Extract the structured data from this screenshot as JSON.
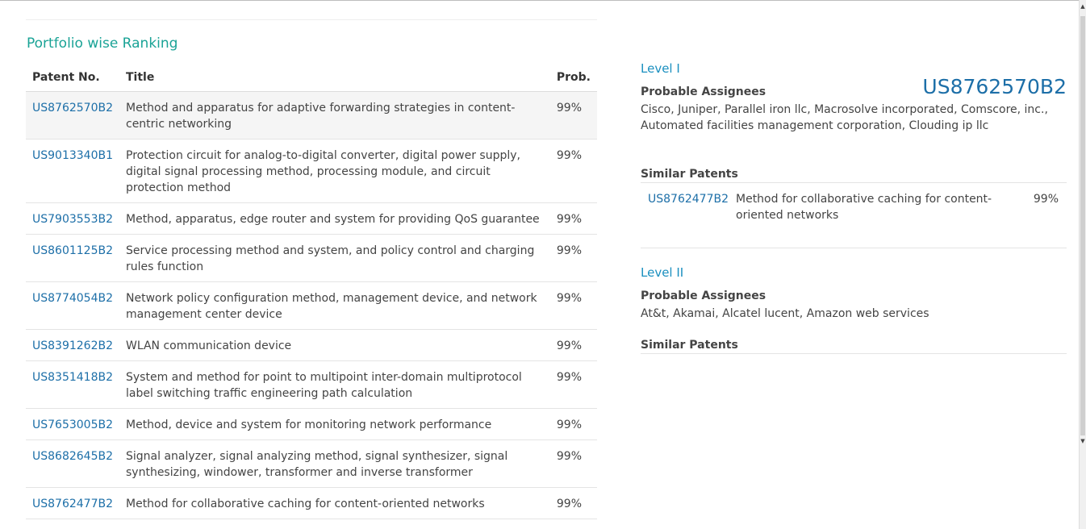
{
  "portfolio": {
    "title": "Portfolio wise Ranking",
    "columns": {
      "patent_no": "Patent No.",
      "title": "Title",
      "prob": "Prob."
    },
    "rows": [
      {
        "id": "US8762570B2",
        "title": "Method and apparatus for adaptive forwarding strategies in content-centric networking",
        "prob": "99%"
      },
      {
        "id": "US9013340B1",
        "title": "Protection circuit for analog-to-digital converter, digital power supply, digital signal processing method, processing module, and circuit protection method",
        "prob": "99%"
      },
      {
        "id": "US7903553B2",
        "title": "Method, apparatus, edge router and system for providing QoS guarantee",
        "prob": "99%"
      },
      {
        "id": "US8601125B2",
        "title": "Service processing method and system, and policy control and charging rules function",
        "prob": "99%"
      },
      {
        "id": "US8774054B2",
        "title": "Network policy configuration method, management device, and network management center device",
        "prob": "99%"
      },
      {
        "id": "US8391262B2",
        "title": "WLAN communication device",
        "prob": "99%"
      },
      {
        "id": "US8351418B2",
        "title": "System and method for point to multipoint inter-domain multiprotocol label switching traffic engineering path calculation",
        "prob": "99%"
      },
      {
        "id": "US7653005B2",
        "title": "Method, device and system for monitoring network performance",
        "prob": "99%"
      },
      {
        "id": "US8682645B2",
        "title": "Signal analyzer, signal analyzing method, signal synthesizer, signal synthesizing, windower, transformer and inverse transformer",
        "prob": "99%"
      },
      {
        "id": "US8762477B2",
        "title": "Method for collaborative caching for content-oriented networks",
        "prob": "99%"
      }
    ]
  },
  "detail": {
    "selected_id": "US8762570B2",
    "level1": {
      "title": "Level I",
      "assignees_label": "Probable Assignees",
      "assignees": "Cisco, Juniper, Parallel iron llc, Macrosolve incorporated, Comscore, inc., Automated facilities management corporation, Clouding ip llc",
      "similar_label": "Similar Patents",
      "similar": [
        {
          "id": "US8762477B2",
          "title": "Method for collaborative caching for content-oriented networks",
          "prob": "99%"
        }
      ]
    },
    "level2": {
      "title": "Level II",
      "assignees_label": "Probable Assignees",
      "assignees": "At&t, Akamai, Alcatel lucent, Amazon web services",
      "similar_label": "Similar Patents"
    }
  },
  "scrollbar": {
    "up_icon": "scroll-up-arrow",
    "down_icon": "scroll-down-arrow"
  }
}
